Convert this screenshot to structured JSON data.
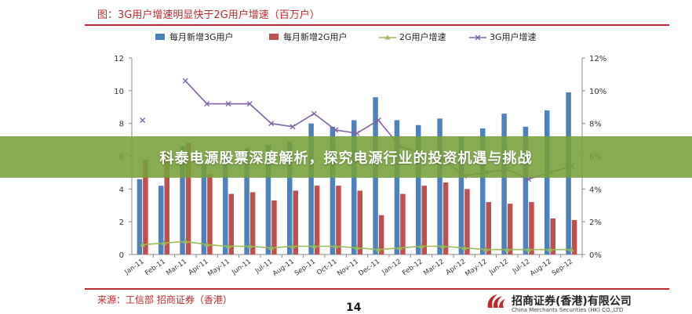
{
  "figure_title": "图：3G用户增速明显快于2G用户增速（百万户）",
  "source_text": "来源：工信部  招商证券（香港）",
  "page_number": "14",
  "logo": {
    "name_cn": "招商证券(香港)有限公司",
    "name_en": "China Merchants Securities (HK) CO.,LTD",
    "icon": "cms-logo-icon",
    "color": "#c0282d"
  },
  "banner": {
    "text": "科泰电源股票深度解析，探究电源行业的投资机遇与挑战"
  },
  "colors": {
    "accent": "#c0282d",
    "bar_3g": "#4f81bd",
    "bar_2g": "#c0504d",
    "line_2g": "#9bbb59",
    "line_3g": "#8064a2",
    "banner": "#76a03a"
  },
  "chart_data": {
    "type": "bar",
    "categories": [
      "Jan-11",
      "Feb-11",
      "Mar-11",
      "Apr-11",
      "May-11",
      "Jun-11",
      "Jul-11",
      "Aug-11",
      "Sep-11",
      "Oct-11",
      "Nov-11",
      "Dec-11",
      "Jan-12",
      "Feb-12",
      "Mar-12",
      "Apr-12",
      "May-12",
      "Jun-12",
      "Jul-12",
      "Aug-12",
      "Sep-12"
    ],
    "series": [
      {
        "name": "每月新增3G用户",
        "kind": "bar",
        "axis": "left",
        "values": [
          4.6,
          4.2,
          6.6,
          5.5,
          6.1,
          6.5,
          6.7,
          6.9,
          8.0,
          7.8,
          8.2,
          9.6,
          8.2,
          7.9,
          8.3,
          7.2,
          7.7,
          8.6,
          7.8,
          8.8,
          9.9
        ]
      },
      {
        "name": "每月新增2G用户",
        "kind": "bar",
        "axis": "left",
        "values": [
          5.8,
          6.2,
          6.8,
          4.9,
          3.7,
          3.8,
          3.3,
          3.9,
          4.2,
          4.2,
          3.9,
          2.4,
          3.7,
          4.2,
          4.4,
          4.0,
          3.2,
          3.1,
          3.2,
          2.2,
          2.1
        ]
      },
      {
        "name": "2G用户增速",
        "kind": "line",
        "axis": "right",
        "values": [
          0.6,
          0.7,
          0.8,
          0.6,
          0.5,
          0.5,
          0.4,
          0.5,
          0.5,
          0.5,
          0.4,
          0.3,
          0.4,
          0.5,
          0.5,
          0.4,
          0.3,
          0.3,
          0.3,
          0.3,
          0.3
        ]
      },
      {
        "name": "3G用户增速",
        "kind": "line",
        "axis": "right",
        "values": [
          8.2,
          null,
          10.6,
          9.2,
          9.2,
          9.2,
          8.0,
          7.8,
          8.6,
          7.6,
          7.4,
          8.2,
          6.6,
          6.2,
          5.8,
          4.8,
          5.0,
          5.2,
          4.6,
          5.0,
          5.4
        ]
      }
    ],
    "title": "图：3G用户增速明显快于2G用户增速（百万户）",
    "ylim": [
      0,
      12
    ],
    "y_ticks": [
      "0",
      "2",
      "4",
      "6",
      "8",
      "10",
      "12"
    ],
    "y2lim": [
      0,
      12
    ],
    "y2_ticks": [
      "0%",
      "2%",
      "4%",
      "6%",
      "8%",
      "10%",
      "12%"
    ],
    "legend_position": "top",
    "grid": false
  }
}
